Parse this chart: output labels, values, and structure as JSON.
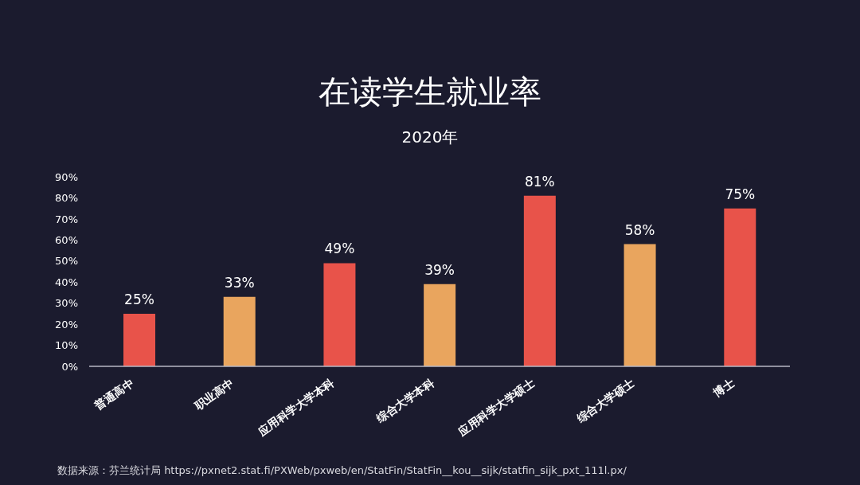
{
  "chart_data": {
    "type": "bar",
    "title": "在读学生就业率",
    "subtitle": "2020年",
    "categories": [
      "普通高中",
      "职业高中",
      "应用科学大学本科",
      "综合大学本科",
      "应用科学大学硕士",
      "综合大学硕士",
      "博士"
    ],
    "values": [
      25,
      33,
      49,
      39,
      81,
      58,
      75
    ],
    "colors": [
      "#e8534a",
      "#e9a55e",
      "#e8534a",
      "#e9a55e",
      "#e8534a",
      "#e9a55e",
      "#e8534a"
    ],
    "value_labels": [
      "25%",
      "33%",
      "49%",
      "39%",
      "81%",
      "58%",
      "75%"
    ],
    "ylim": [
      0,
      90
    ],
    "yticks": [
      {
        "value": 0,
        "label": "0%"
      },
      {
        "value": 10,
        "label": "10%"
      },
      {
        "value": 20,
        "label": "20%"
      },
      {
        "value": 30,
        "label": "30%"
      },
      {
        "value": 40,
        "label": "40%"
      },
      {
        "value": 50,
        "label": "50%"
      },
      {
        "value": 60,
        "label": "60%"
      },
      {
        "value": 70,
        "label": "70%"
      },
      {
        "value": 80,
        "label": "80%"
      },
      {
        "value": 90,
        "label": "90%"
      }
    ],
    "annotations": [
      "数据来源：芬兰统计局 https://pxnet2.stat.fi/PXWeb/pxweb/en/StatFin/StatFin__kou__sijk/statfin_sijk_pxt_111l.px/"
    ]
  }
}
